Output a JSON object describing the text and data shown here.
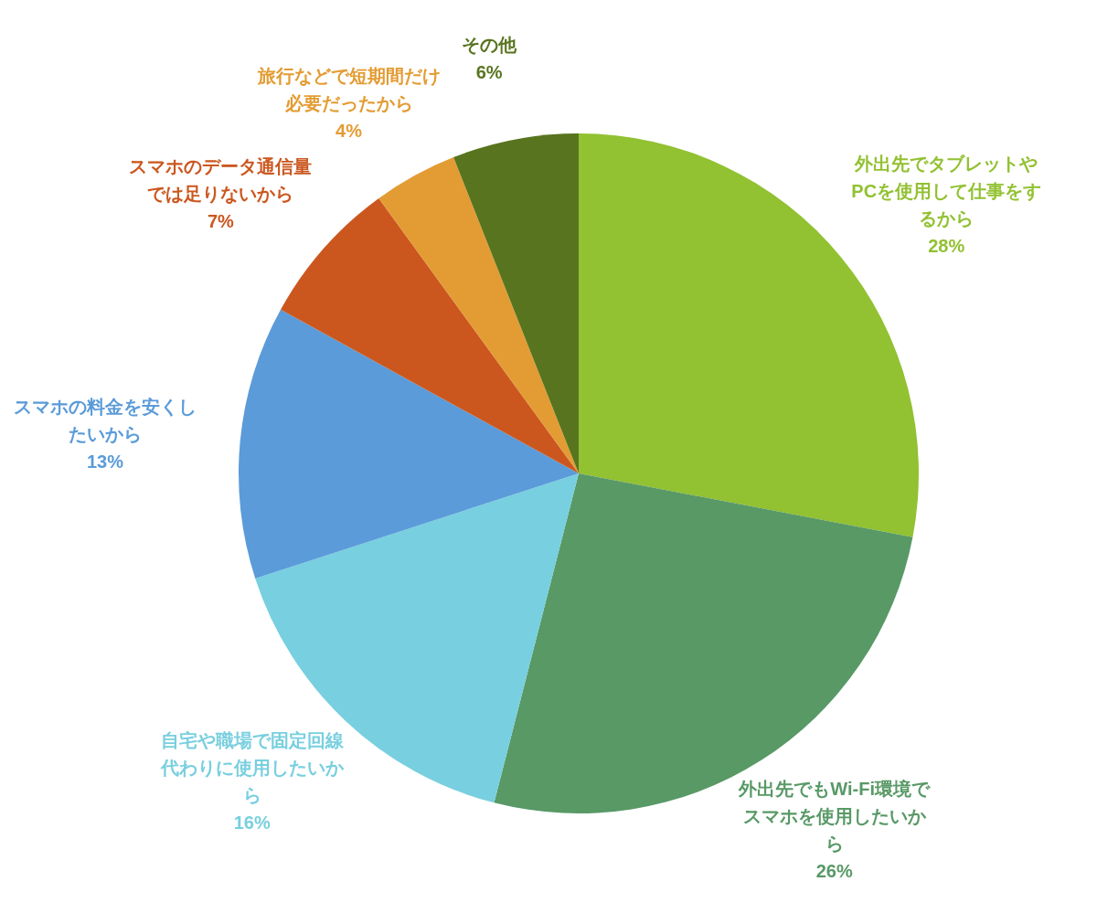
{
  "chart_data": {
    "type": "pie",
    "categories": [
      "外出先でタブレットやPCを使用して仕事をするから",
      "外出先でもWi-Fi環境でスマホを使用したいから",
      "自宅や職場で固定回線代わりに使用したいから",
      "スマホの料金を安くしたいから",
      "スマホのデータ通信量では足りないから",
      "旅行などで短期間だけ必要だったから",
      "その他"
    ],
    "values": [
      28,
      26,
      16,
      13,
      7,
      4,
      6
    ],
    "colors": [
      "#92c131",
      "#589966",
      "#78cfdf",
      "#5b9bd9",
      "#cb571f",
      "#e39c33",
      "#58741f"
    ],
    "value_labels": [
      "28%",
      "26%",
      "16%",
      "13%",
      "7%",
      "4%",
      "6%"
    ]
  }
}
